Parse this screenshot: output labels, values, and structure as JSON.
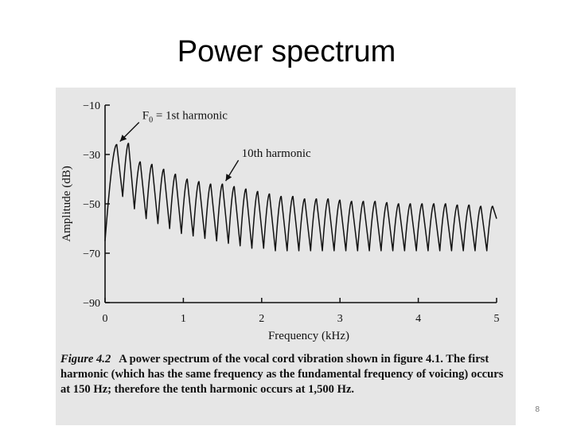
{
  "slide": {
    "title": "Power spectrum",
    "page_number": "8"
  },
  "caption": {
    "figure_label": "Figure 4.2",
    "text": "A power spectrum of the vocal cord vibration shown in figure 4.1. The first harmonic (which has the same frequency as the fundamental frequency of voicing) occurs at 150 Hz; therefore the tenth harmonic occurs at 1,500 Hz."
  },
  "chart_data": {
    "type": "line",
    "title": "",
    "xlabel": "Frequency (kHz)",
    "ylabel": "Amplitude (dB)",
    "xlim": [
      0,
      5
    ],
    "ylim": [
      -90,
      -10
    ],
    "x_ticks": [
      0,
      1,
      2,
      3,
      4,
      5
    ],
    "y_ticks": [
      -10,
      -30,
      -50,
      -70,
      -90
    ],
    "y_tick_labels": [
      "−10",
      "−30",
      "−50",
      "−70",
      "−90"
    ],
    "grid": false,
    "line_color": "#111111",
    "fundamental_khz": 0.15,
    "harmonic_peaks": [
      {
        "x": 0.15,
        "y": -26
      },
      {
        "x": 0.3,
        "y": -25.5
      },
      {
        "x": 0.45,
        "y": -33
      },
      {
        "x": 0.6,
        "y": -34
      },
      {
        "x": 0.75,
        "y": -36
      },
      {
        "x": 0.9,
        "y": -38
      },
      {
        "x": 1.05,
        "y": -40
      },
      {
        "x": 1.2,
        "y": -41
      },
      {
        "x": 1.35,
        "y": -42
      },
      {
        "x": 1.5,
        "y": -42
      },
      {
        "x": 1.65,
        "y": -43
      },
      {
        "x": 1.8,
        "y": -44
      },
      {
        "x": 1.95,
        "y": -45
      },
      {
        "x": 2.1,
        "y": -46
      },
      {
        "x": 2.25,
        "y": -47
      },
      {
        "x": 2.4,
        "y": -47
      },
      {
        "x": 2.55,
        "y": -48
      },
      {
        "x": 2.7,
        "y": -48
      },
      {
        "x": 2.85,
        "y": -48
      },
      {
        "x": 3.0,
        "y": -48.5
      },
      {
        "x": 3.15,
        "y": -49
      },
      {
        "x": 3.3,
        "y": -49
      },
      {
        "x": 3.45,
        "y": -49
      },
      {
        "x": 3.6,
        "y": -49.5
      },
      {
        "x": 3.75,
        "y": -50
      },
      {
        "x": 3.9,
        "y": -50
      },
      {
        "x": 4.05,
        "y": -50
      },
      {
        "x": 4.2,
        "y": -50
      },
      {
        "x": 4.35,
        "y": -50
      },
      {
        "x": 4.5,
        "y": -50.5
      },
      {
        "x": 4.65,
        "y": -50.5
      },
      {
        "x": 4.8,
        "y": -51
      },
      {
        "x": 4.95,
        "y": -51
      }
    ],
    "harmonic_troughs": [
      {
        "x": 0.0,
        "y": -65
      },
      {
        "x": 0.225,
        "y": -47
      },
      {
        "x": 0.375,
        "y": -52
      },
      {
        "x": 0.525,
        "y": -56
      },
      {
        "x": 0.675,
        "y": -58
      },
      {
        "x": 0.825,
        "y": -60
      },
      {
        "x": 0.975,
        "y": -62
      },
      {
        "x": 1.125,
        "y": -63
      },
      {
        "x": 1.275,
        "y": -64
      },
      {
        "x": 1.425,
        "y": -65
      },
      {
        "x": 1.575,
        "y": -66
      },
      {
        "x": 1.725,
        "y": -67
      },
      {
        "x": 1.875,
        "y": -68
      },
      {
        "x": 2.025,
        "y": -68
      },
      {
        "x": 2.175,
        "y": -69
      },
      {
        "x": 2.325,
        "y": -69
      },
      {
        "x": 2.475,
        "y": -69
      },
      {
        "x": 2.625,
        "y": -69
      },
      {
        "x": 2.775,
        "y": -69
      },
      {
        "x": 2.925,
        "y": -69
      },
      {
        "x": 3.075,
        "y": -69
      },
      {
        "x": 3.225,
        "y": -69
      },
      {
        "x": 3.375,
        "y": -69
      },
      {
        "x": 3.525,
        "y": -69
      },
      {
        "x": 3.675,
        "y": -69
      },
      {
        "x": 3.825,
        "y": -69
      },
      {
        "x": 3.975,
        "y": -69
      },
      {
        "x": 4.125,
        "y": -69
      },
      {
        "x": 4.275,
        "y": -69
      },
      {
        "x": 4.425,
        "y": -69
      },
      {
        "x": 4.575,
        "y": -69
      },
      {
        "x": 4.725,
        "y": -69
      },
      {
        "x": 4.875,
        "y": -69
      }
    ],
    "series_end": {
      "x": 5.0,
      "y": -56
    },
    "annotations": [
      {
        "id": "first",
        "text_prefix": "F",
        "text_sub": "0",
        "text_suffix": " = 1st harmonic",
        "target_x": 0.15,
        "target_y": -26
      },
      {
        "id": "tenth",
        "text": "10th harmonic",
        "target_x": 1.5,
        "target_y": -42
      }
    ]
  }
}
